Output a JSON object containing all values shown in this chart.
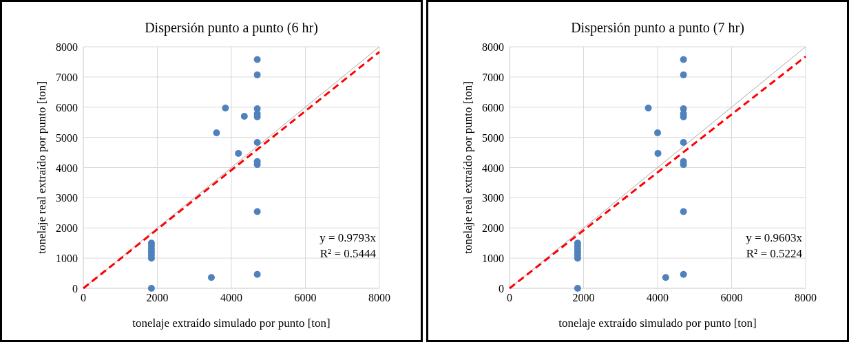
{
  "chart_data": [
    {
      "type": "scatter",
      "title": "Dispersión  punto a punto (6 hr)",
      "xlabel": "tonelaje extraído simulado por punto [ton]",
      "ylabel": "tonelaje real extraído por punto [ton]",
      "xlim": [
        0,
        8000
      ],
      "ylim": [
        0,
        8000
      ],
      "xticks": [
        0,
        2000,
        4000,
        6000,
        8000
      ],
      "yticks": [
        0,
        1000,
        2000,
        3000,
        4000,
        5000,
        6000,
        7000,
        8000
      ],
      "grid": true,
      "marker": "circle",
      "annotations": [
        "y = 0.9793x",
        "R² = 0.5444"
      ],
      "series": [
        {
          "color": "#4f81bd",
          "x": [
            4700,
            4700,
            3840,
            4700,
            4350,
            4700,
            4700,
            3600,
            4700,
            4190,
            4700,
            4700,
            4700,
            4700,
            3460,
            1840,
            1840,
            1840,
            1840,
            1840,
            1840,
            1840
          ],
          "values": [
            7580,
            7070,
            5970,
            5950,
            5700,
            5780,
            5680,
            5150,
            4830,
            4470,
            4200,
            4100,
            2540,
            460,
            360,
            0,
            1500,
            1400,
            1300,
            1200,
            1100,
            1000
          ]
        },
        {
          "type": "line",
          "color": "#a6a6a6",
          "line_style": "solid",
          "marker": "none",
          "x": [
            0,
            8000
          ],
          "values": [
            0,
            8000
          ]
        },
        {
          "type": "line",
          "color": "#ff0000",
          "line_style": "dashed",
          "marker": "none",
          "x": [
            0,
            8000
          ],
          "values": [
            0,
            7830
          ]
        }
      ]
    },
    {
      "type": "scatter",
      "title": "Dispersión  punto a punto (7 hr)",
      "xlabel": "tonelaje extraído simulado por punto [ton]",
      "ylabel": "tonelaje real extraído por punto [ton]",
      "xlim": [
        0,
        8000
      ],
      "ylim": [
        0,
        8000
      ],
      "xticks": [
        0,
        2000,
        4000,
        6000,
        8000
      ],
      "yticks": [
        0,
        1000,
        2000,
        3000,
        4000,
        5000,
        6000,
        7000,
        8000
      ],
      "grid": true,
      "marker": "circle",
      "annotations": [
        "y = 0.9603x",
        "R² = 0.5224"
      ],
      "series": [
        {
          "color": "#4f81bd",
          "x": [
            4700,
            4700,
            3750,
            4700,
            4700,
            4700,
            4000,
            4700,
            4010,
            4700,
            4700,
            4700,
            4700,
            4220,
            1840,
            1840,
            1840,
            1840,
            1840,
            1840,
            1840
          ],
          "values": [
            7580,
            7070,
            5970,
            5950,
            5780,
            5680,
            5150,
            4830,
            4470,
            4200,
            4100,
            2540,
            460,
            360,
            0,
            1500,
            1400,
            1300,
            1200,
            1100,
            1000
          ]
        },
        {
          "type": "line",
          "color": "#a6a6a6",
          "line_style": "solid",
          "marker": "none",
          "x": [
            0,
            8000
          ],
          "values": [
            0,
            8000
          ]
        },
        {
          "type": "line",
          "color": "#ff0000",
          "line_style": "dashed",
          "marker": "none",
          "x": [
            0,
            8000
          ],
          "values": [
            0,
            7680
          ]
        }
      ]
    }
  ]
}
